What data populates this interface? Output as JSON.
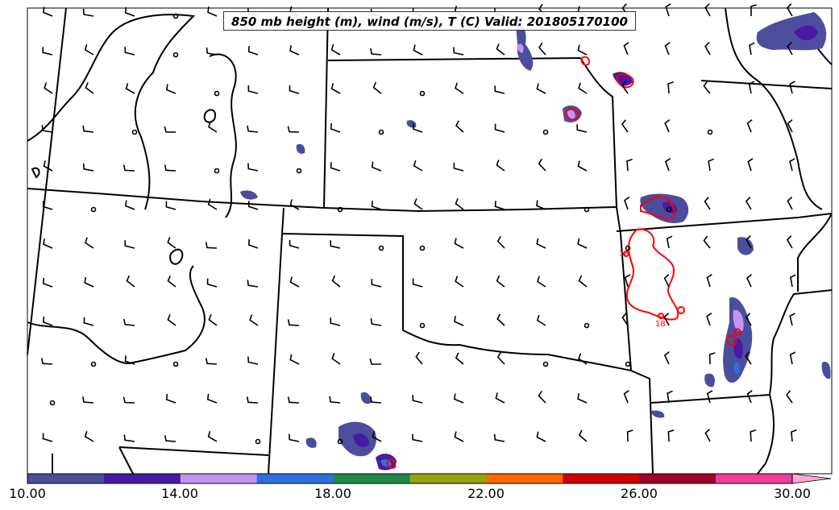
{
  "title": "850 mb height (m), wind (m/s), T (C) Valid: 201805170100",
  "colorbar": {
    "labels": [
      "10.00",
      "14.00",
      "18.00",
      "22.00",
      "26.00",
      "30.00"
    ],
    "bins": [
      {
        "from": 10,
        "to": 12,
        "color": "#4b4e9c"
      },
      {
        "from": 12,
        "to": 14,
        "color": "#4a1aa6"
      },
      {
        "from": 14,
        "to": 16,
        "color": "#c693f5"
      },
      {
        "from": 16,
        "to": 18,
        "color": "#2f6fe0"
      },
      {
        "from": 18,
        "to": 20,
        "color": "#1f8a46"
      },
      {
        "from": 20,
        "to": 22,
        "color": "#99a30f"
      },
      {
        "from": 22,
        "to": 24,
        "color": "#ff6a00"
      },
      {
        "from": 24,
        "to": 26,
        "color": "#d00000"
      },
      {
        "from": 26,
        "to": 28,
        "color": "#9e0028"
      },
      {
        "from": 28,
        "to": 30,
        "color": "#f03c9c"
      },
      {
        "from": 30,
        "to": null,
        "color": "#fba8d8"
      }
    ]
  },
  "contour_labels": [
    "18",
    "18"
  ],
  "colors": {
    "border": "#000000",
    "contour": "#ff0000",
    "shade_light": "#4b4e9c",
    "shade_dark": "#4a1aa6",
    "shade_lavender": "#c693f5"
  }
}
